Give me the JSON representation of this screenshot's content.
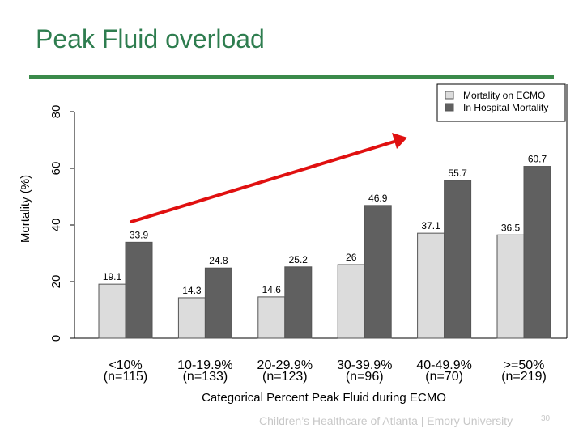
{
  "slide": {
    "title": "Peak Fluid overload",
    "footer": "Children’s Healthcare of Atlanta | Emory University",
    "slide_number": "30"
  },
  "colors": {
    "title": "#2e7d4f",
    "rule": "#3a8a4a",
    "ecmo_bar": "#dcdcdc",
    "hospital_bar": "#606060",
    "arrow": "#e01010"
  },
  "chart_data": {
    "type": "bar",
    "title": "",
    "xlabel": "Categorical Percent Peak Fluid during ECMO",
    "ylabel": "Mortality (%)",
    "ylim": [
      0,
      80
    ],
    "yticks": [
      "0",
      "20",
      "40",
      "60",
      "80"
    ],
    "categories": [
      [
        "<10%",
        "(n=115)"
      ],
      [
        "10-19.9%",
        "(n=133)"
      ],
      [
        "20-29.9%",
        "(n=123)"
      ],
      [
        "30-39.9%",
        "(n=96)"
      ],
      [
        "40-49.9%",
        "(n=70)"
      ],
      [
        ">=50%",
        "(n=219)"
      ]
    ],
    "series": [
      {
        "name": "Mortality on ECMO",
        "color": "#dcdcdc",
        "values": [
          19.1,
          14.3,
          14.6,
          26,
          37.1,
          36.5
        ],
        "labels": [
          "19.1",
          "14.3",
          "14.6",
          "26",
          "37.1",
          "36.5"
        ]
      },
      {
        "name": "In Hospital Mortality",
        "color": "#606060",
        "values": [
          33.9,
          24.8,
          25.2,
          46.9,
          55.7,
          60.7
        ],
        "labels": [
          "33.9",
          "24.8",
          "25.2",
          "46.9",
          "55.7",
          "60.7"
        ]
      }
    ],
    "legend_position": "top-right",
    "grid": false,
    "annotation": "red arrow rising from the <10% group toward the >=50% group"
  }
}
